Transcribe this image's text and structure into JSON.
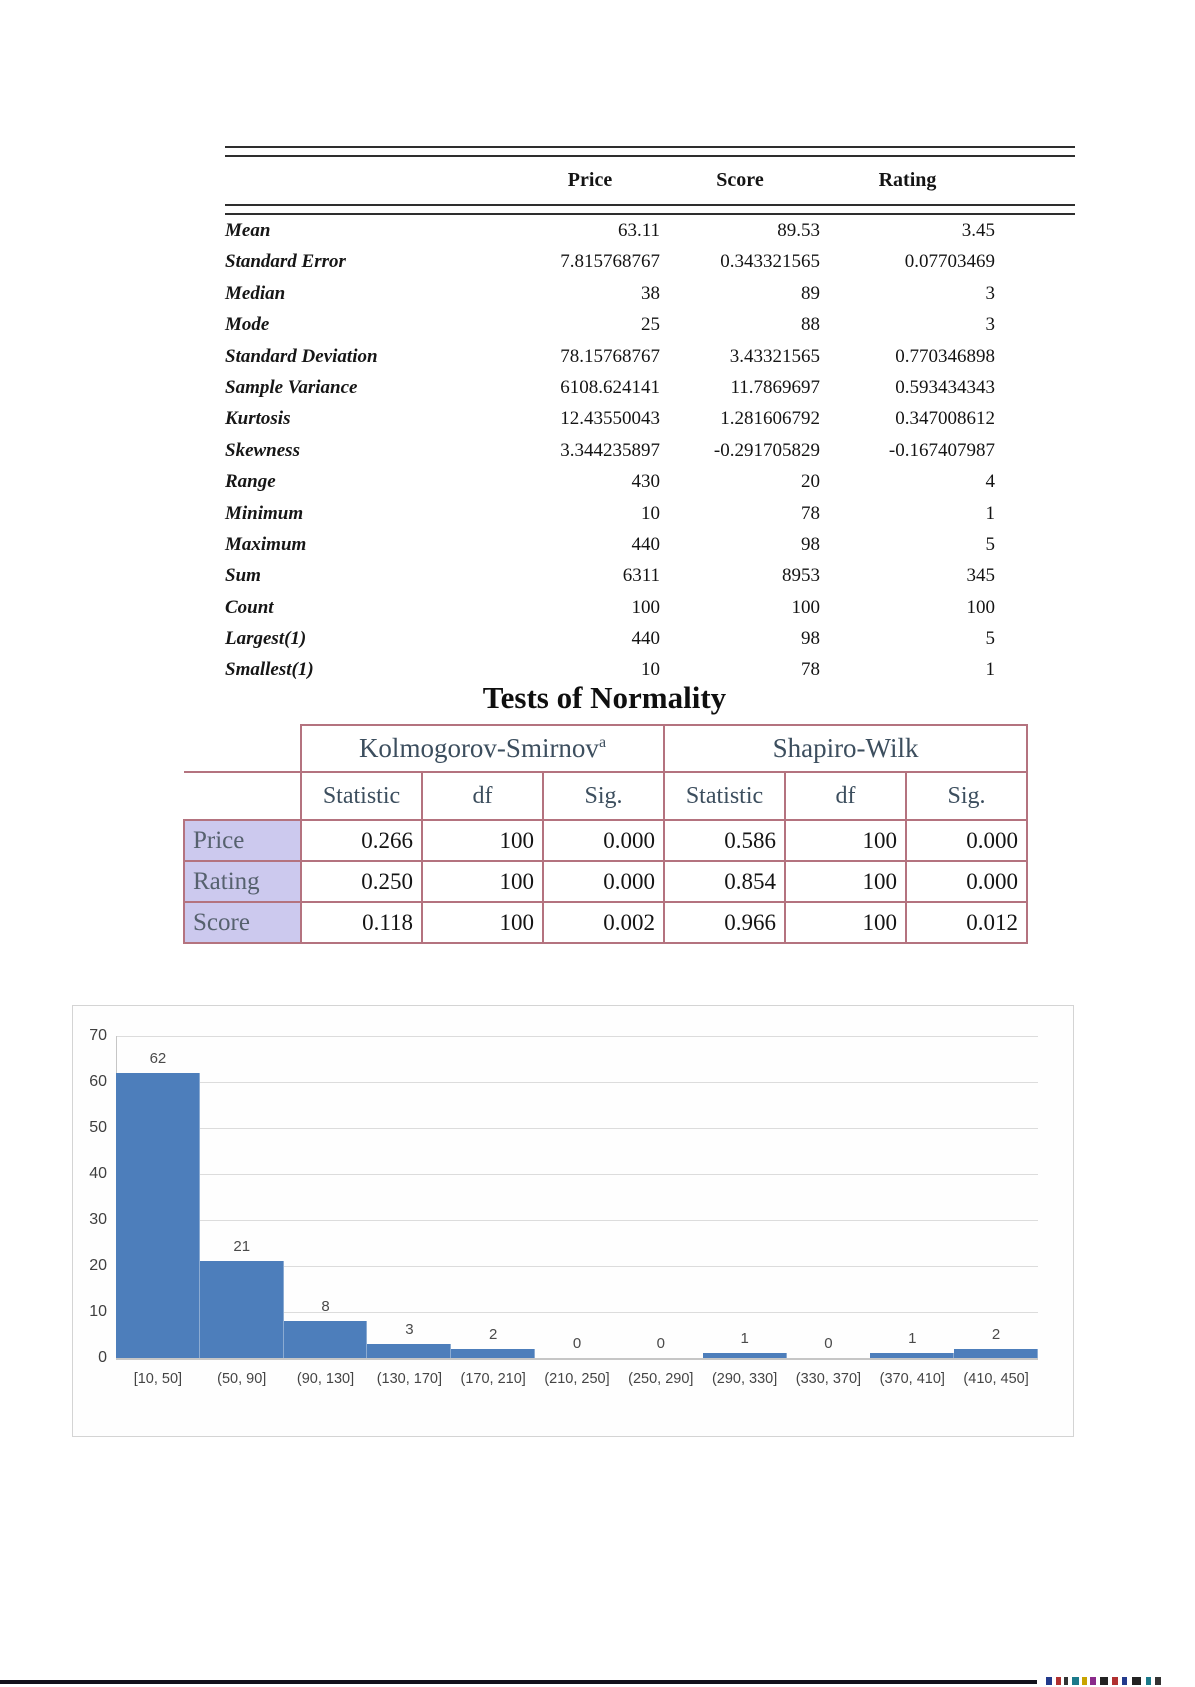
{
  "desc_table": {
    "columns": [
      "Price",
      "Score",
      "Rating"
    ],
    "rows": [
      {
        "label": "Mean",
        "price": "63.11",
        "score": "89.53",
        "rating": "3.45"
      },
      {
        "label": "Standard Error",
        "price": "7.815768767",
        "score": "0.343321565",
        "rating": "0.07703469"
      },
      {
        "label": "Median",
        "price": "38",
        "score": "89",
        "rating": "3"
      },
      {
        "label": "Mode",
        "price": "25",
        "score": "88",
        "rating": "3"
      },
      {
        "label": "Standard Deviation",
        "price": "78.15768767",
        "score": "3.43321565",
        "rating": "0.770346898"
      },
      {
        "label": "Sample Variance",
        "price": "6108.624141",
        "score": "11.7869697",
        "rating": "0.593434343"
      },
      {
        "label": "Kurtosis",
        "price": "12.43550043",
        "score": "1.281606792",
        "rating": "0.347008612"
      },
      {
        "label": "Skewness",
        "price": "3.344235897",
        "score": "-0.291705829",
        "rating": "-0.167407987"
      },
      {
        "label": "Range",
        "price": "430",
        "score": "20",
        "rating": "4"
      },
      {
        "label": "Minimum",
        "price": "10",
        "score": "78",
        "rating": "1"
      },
      {
        "label": "Maximum",
        "price": "440",
        "score": "98",
        "rating": "5"
      },
      {
        "label": "Sum",
        "price": "6311",
        "score": "8953",
        "rating": "345"
      },
      {
        "label": "Count",
        "price": "100",
        "score": "100",
        "rating": "100"
      },
      {
        "label": "Largest(1)",
        "price": "440",
        "score": "98",
        "rating": "5"
      },
      {
        "label": "Smallest(1)",
        "price": "10",
        "score": "78",
        "rating": "1"
      }
    ]
  },
  "normality": {
    "title": "Tests of Normality",
    "ks_label": "Kolmogorov-Smirnov",
    "ks_sup": "a",
    "sw_label": "Shapiro-Wilk",
    "sub_headers": [
      "Statistic",
      "df",
      "Sig.",
      "Statistic",
      "df",
      "Sig."
    ],
    "rows": [
      {
        "label": "Price",
        "values": [
          "0.266",
          "100",
          "0.000",
          "0.586",
          "100",
          "0.000"
        ]
      },
      {
        "label": "Rating",
        "values": [
          "0.250",
          "100",
          "0.000",
          "0.854",
          "100",
          "0.000"
        ]
      },
      {
        "label": "Score",
        "values": [
          "0.118",
          "100",
          "0.002",
          "0.966",
          "100",
          "0.012"
        ]
      }
    ],
    "border_color": "#b4737f",
    "label_bg_color": "#ccc9ee",
    "header_text_color": "#3c4e5e"
  },
  "chart_data": {
    "type": "bar",
    "title": "",
    "xlabel": "",
    "ylabel": "",
    "categories": [
      "[10, 50]",
      "(50, 90]",
      "(90, 130]",
      "(130, 170]",
      "(170, 210]",
      "(210, 250]",
      "(250, 290]",
      "(290, 330]",
      "(330, 370]",
      "(370, 410]",
      "(410, 450]"
    ],
    "values": [
      62,
      21,
      8,
      3,
      2,
      0,
      0,
      1,
      0,
      1,
      2
    ],
    "ylim": [
      0,
      70
    ],
    "ytick_step": 10,
    "grid": true,
    "legend": "none",
    "bar_color": "#4d7ebb",
    "gridline_color": "#dcdcdc"
  },
  "footer": {
    "line_color": "#12121c",
    "marks": [
      {
        "x": 1046,
        "w": 6,
        "c": "#223a8c"
      },
      {
        "x": 1056,
        "w": 5,
        "c": "#b03030"
      },
      {
        "x": 1064,
        "w": 4,
        "c": "#333333"
      },
      {
        "x": 1072,
        "w": 7,
        "c": "#1b7a8a"
      },
      {
        "x": 1082,
        "w": 5,
        "c": "#c8a400"
      },
      {
        "x": 1090,
        "w": 6,
        "c": "#8a2a8a"
      },
      {
        "x": 1100,
        "w": 8,
        "c": "#222222"
      },
      {
        "x": 1112,
        "w": 6,
        "c": "#b03030"
      },
      {
        "x": 1122,
        "w": 5,
        "c": "#223a8c"
      },
      {
        "x": 1132,
        "w": 9,
        "c": "#222222"
      },
      {
        "x": 1146,
        "w": 5,
        "c": "#1b7a8a"
      },
      {
        "x": 1155,
        "w": 6,
        "c": "#333333"
      }
    ]
  }
}
